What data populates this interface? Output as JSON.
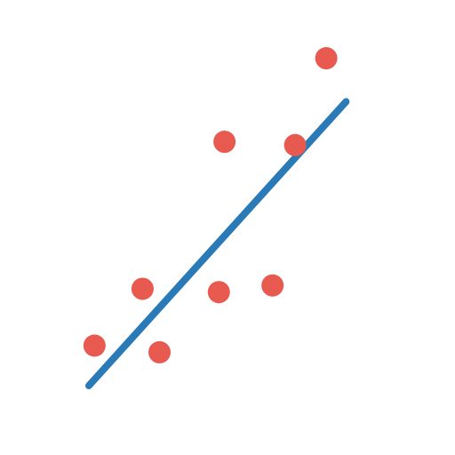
{
  "chart_data": {
    "type": "scatter",
    "title": "",
    "xlabel": "",
    "ylabel": "",
    "grid": false,
    "legend": "none",
    "xlim": [
      0,
      10
    ],
    "ylim": [
      0,
      10
    ],
    "series": [
      {
        "kind": "points",
        "color": "#E8594F",
        "x": [
          0.2,
          1.9,
          2.5,
          4.6,
          4.8,
          6.5,
          7.3,
          8.4
        ],
        "y": [
          1.2,
          2.9,
          1.0,
          2.8,
          7.3,
          3.0,
          7.2,
          9.8
        ]
      },
      {
        "kind": "trend-line",
        "color": "#2A7AB8",
        "x": [
          0.0,
          9.1
        ],
        "y": [
          0.0,
          8.5
        ]
      }
    ]
  }
}
